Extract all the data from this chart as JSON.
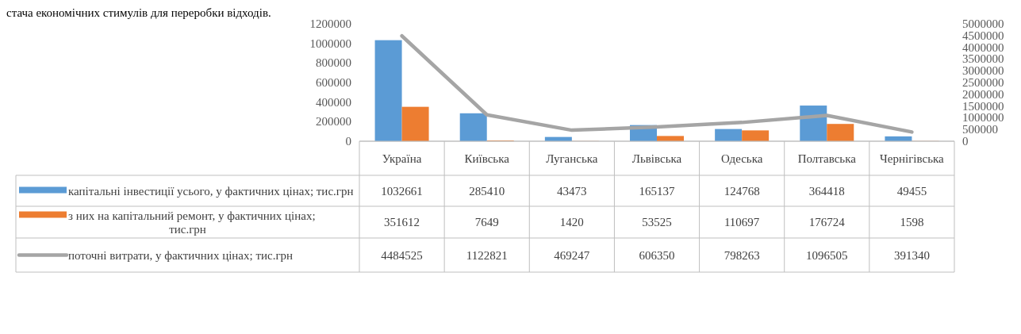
{
  "chart_data": {
    "type": "bar",
    "annotations": [
      "стача економічних стимулів для переробки відходів."
    ],
    "categories": [
      "Україна",
      "Київська",
      "Луганська",
      "Львівська",
      "Одеська",
      "Полтавська",
      "Чернігівська"
    ],
    "series": [
      {
        "name": "капітальні інвестиції усього, у фактичних цінах; тис.грн",
        "color": "#5b9bd5",
        "values": [
          1032661,
          285410,
          43473,
          165137,
          124768,
          364418,
          49455
        ]
      },
      {
        "name": "з них на капітальний ремонт, у фактичних цінах; тис.грн",
        "color": "#ed7d31",
        "values": [
          351612,
          7649,
          1420,
          53525,
          110697,
          176724,
          1598
        ]
      },
      {
        "name": "поточні витрати, у фактичних цінах; тис.грн",
        "type": "line",
        "axis": "y2",
        "color": "#a5a5a5",
        "values": [
          4484525,
          1122821,
          469247,
          606350,
          798263,
          1096505,
          391340
        ]
      }
    ],
    "ylim": [
      0,
      1200000
    ],
    "yticks": [
      0,
      200000,
      400000,
      600000,
      800000,
      1000000,
      1200000
    ],
    "y2lim": [
      0,
      5000000
    ],
    "y2ticks": [
      0,
      500000,
      1000000,
      1500000,
      2000000,
      2500000,
      3000000,
      3500000,
      4000000,
      4500000,
      5000000
    ],
    "data_labels": true,
    "legend": "bottom"
  }
}
